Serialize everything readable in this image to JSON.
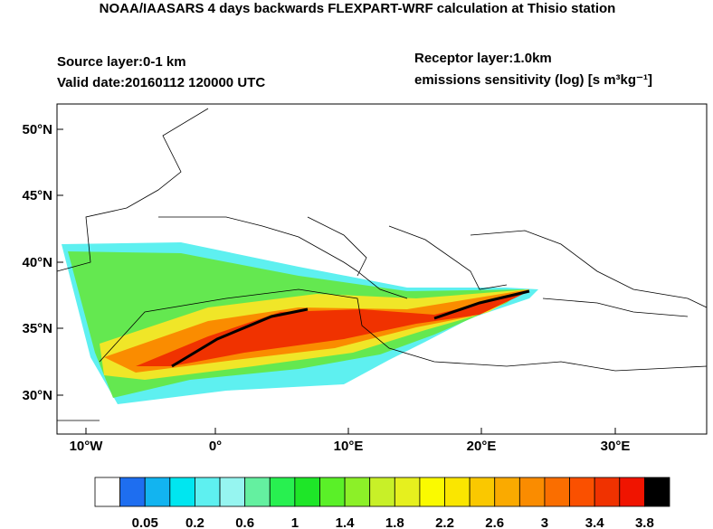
{
  "header": {
    "title": "NOAA/IAASARS 4 days backwards FLEXPART-WRF calculation at Thisio station",
    "source_layer": "Source layer:0-1 km",
    "valid_date": "Valid date:20160112 120000 UTC",
    "receptor_layer": "Receptor layer:1.0km",
    "units": "emissions sensitivity (log) [s m³kg⁻¹]"
  },
  "map": {
    "lat_labels": [
      "50°N",
      "45°N",
      "40°N",
      "35°N",
      "30°N"
    ],
    "lon_labels": [
      "10°W",
      "0°",
      "10°E",
      "20°E",
      "30°E"
    ]
  },
  "colorbar": {
    "colors": [
      "#ffffff",
      "#1e6ef0",
      "#12b4f0",
      "#00e6f0",
      "#5ef0f0",
      "#96f5f0",
      "#64f0a0",
      "#28f050",
      "#1ee628",
      "#5af028",
      "#8cf028",
      "#c8f028",
      "#e6f01e",
      "#fafa00",
      "#fae600",
      "#fac800",
      "#faaa00",
      "#fa8c00",
      "#fa6e00",
      "#fa5000",
      "#f03200",
      "#f01400",
      "#000000"
    ],
    "labels": [
      "0.05",
      "0.2",
      "0.6",
      "1",
      "1.4",
      "1.8",
      "2.2",
      "2.6",
      "3",
      "3.4",
      "3.8"
    ]
  }
}
